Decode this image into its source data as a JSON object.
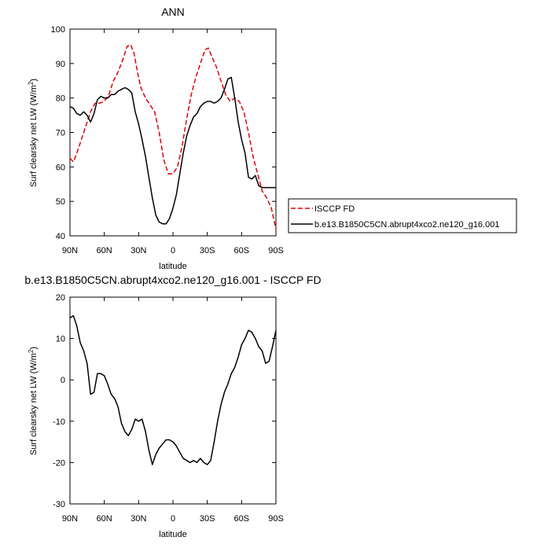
{
  "chart_data": [
    {
      "type": "line",
      "title": "ANN",
      "xlabel": "latitude",
      "ylabel_main": "Surf clearsky net LW (W/m",
      "ylabel_sup": "2",
      "ylabel_tail": ")",
      "xlim": [
        90,
        -90
      ],
      "ylim": [
        40,
        100
      ],
      "x_ticks": [
        {
          "value": 90,
          "label": "90N"
        },
        {
          "value": 60,
          "label": "60N"
        },
        {
          "value": 30,
          "label": "30N"
        },
        {
          "value": 0,
          "label": "0"
        },
        {
          "value": -30,
          "label": "30S"
        },
        {
          "value": -60,
          "label": "60S"
        },
        {
          "value": -90,
          "label": "90S"
        }
      ],
      "y_ticks": [
        40,
        50,
        60,
        70,
        80,
        90,
        100
      ],
      "legend_position": "right",
      "series": [
        {
          "name": "ISCCP FD",
          "color": "#e00000",
          "dash": "dashed",
          "x": [
            90,
            87,
            84,
            80,
            76,
            72,
            68,
            64,
            60,
            56,
            52,
            48,
            44,
            40,
            37,
            34,
            31,
            28,
            24,
            20,
            16,
            12,
            8,
            4,
            0,
            -4,
            -8,
            -12,
            -16,
            -20,
            -24,
            -28,
            -31,
            -34,
            -38,
            -42,
            -46,
            -50,
            -54,
            -58,
            -62,
            -66,
            -70,
            -74,
            -78,
            -82,
            -86,
            -88,
            -90
          ],
          "y": [
            62.5,
            61.5,
            64,
            68,
            72,
            76,
            78.5,
            78.5,
            79,
            81,
            85,
            87.5,
            91,
            95,
            95.5,
            93,
            87.5,
            83,
            80,
            78,
            76,
            70,
            62,
            58,
            58,
            60,
            66,
            74,
            81,
            86,
            90,
            94,
            94.5,
            92,
            89,
            85,
            81,
            79,
            80,
            79,
            76,
            70,
            63,
            58,
            53,
            51,
            48,
            45,
            42
          ]
        },
        {
          "name": "b.e13.B1850C5CN.abrupt4xco2.ne120_g16.001",
          "color": "#000000",
          "dash": "solid",
          "x": [
            90,
            87,
            84,
            81,
            78,
            75,
            72,
            69,
            66,
            63,
            60,
            57,
            54,
            51,
            48,
            45,
            42,
            39,
            36,
            33,
            30,
            27,
            24,
            21,
            18,
            15,
            12,
            9,
            6,
            3,
            0,
            -3,
            -6,
            -9,
            -12,
            -15,
            -18,
            -21,
            -24,
            -27,
            -30,
            -33,
            -36,
            -39,
            -42,
            -45,
            -48,
            -51,
            -54,
            -57,
            -60,
            -63,
            -66,
            -69,
            -72,
            -75,
            -78,
            -81,
            -84,
            -87,
            -90
          ],
          "y": [
            77.5,
            77,
            75.5,
            75,
            76,
            75,
            73,
            75.5,
            79.5,
            80.5,
            80,
            80,
            81,
            81,
            82,
            82.5,
            83,
            82.5,
            81.5,
            76,
            72.5,
            68,
            63,
            57,
            51,
            46,
            44,
            43.5,
            43.5,
            45,
            48,
            52,
            58,
            64,
            69,
            72,
            74.5,
            75.5,
            77.5,
            78.5,
            79,
            79,
            78.5,
            79,
            80,
            82.5,
            85.5,
            86,
            80,
            73,
            68,
            64,
            57,
            56.5,
            57.5,
            54.5,
            54,
            54,
            54,
            54,
            54
          ]
        }
      ]
    },
    {
      "type": "line",
      "title": "b.e13.B1850C5CN.abrupt4xco2.ne120_g16.001 - ISCCP FD",
      "xlabel": "latitude",
      "ylabel_main": "Surf clearsky net LW (W/m",
      "ylabel_sup": "2",
      "ylabel_tail": ")",
      "xlim": [
        90,
        -90
      ],
      "ylim": [
        -30,
        20
      ],
      "x_ticks": [
        {
          "value": 90,
          "label": "90N"
        },
        {
          "value": 60,
          "label": "60N"
        },
        {
          "value": 30,
          "label": "30N"
        },
        {
          "value": 0,
          "label": "0"
        },
        {
          "value": -30,
          "label": "30S"
        },
        {
          "value": -60,
          "label": "60S"
        },
        {
          "value": -90,
          "label": "90S"
        }
      ],
      "y_ticks": [
        -30,
        -20,
        -10,
        0,
        10,
        20
      ],
      "series": [
        {
          "color": "#000000",
          "dash": "solid",
          "x": [
            90,
            87,
            84,
            81,
            78,
            75,
            72,
            69,
            66,
            63,
            60,
            57,
            54,
            51,
            48,
            45,
            42,
            39,
            36,
            33,
            30,
            27,
            24,
            21,
            18,
            15,
            12,
            9,
            6,
            3,
            0,
            -3,
            -6,
            -9,
            -12,
            -15,
            -18,
            -21,
            -24,
            -27,
            -30,
            -33,
            -36,
            -39,
            -42,
            -45,
            -48,
            -51,
            -54,
            -57,
            -60,
            -63,
            -66,
            -69,
            -72,
            -75,
            -78,
            -81,
            -84,
            -87,
            -90
          ],
          "y": [
            15,
            15.5,
            13,
            9,
            7,
            4,
            -3.5,
            -3,
            1.5,
            1.5,
            1,
            -1,
            -3.5,
            -4.5,
            -6.5,
            -10.5,
            -12.5,
            -13.5,
            -12,
            -9.5,
            -10,
            -9.5,
            -12.5,
            -17,
            -20.5,
            -18,
            -16.5,
            -15.5,
            -14.5,
            -14.5,
            -15,
            -16,
            -17.5,
            -19,
            -19.5,
            -20,
            -19.5,
            -20,
            -19,
            -20,
            -20.5,
            -19.5,
            -15,
            -10,
            -6,
            -3,
            -1,
            1.5,
            3,
            5.5,
            8.5,
            10,
            12,
            11.5,
            10,
            8,
            7,
            4,
            4.5,
            8,
            12
          ]
        }
      ]
    }
  ]
}
